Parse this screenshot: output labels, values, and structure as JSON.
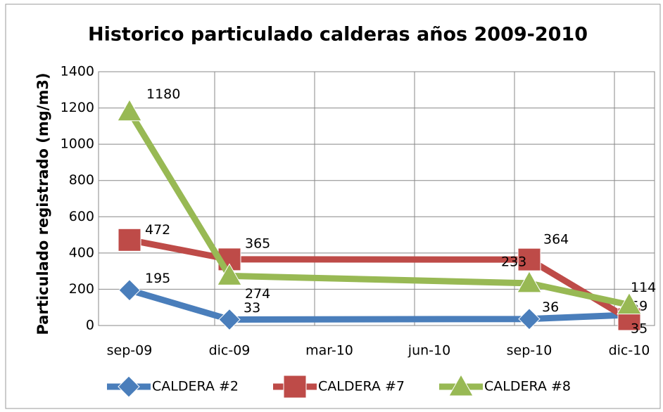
{
  "chart_data": {
    "type": "line",
    "title": "Historico particulado calderas años 2009-2010",
    "y_label": "Particulado registrado (mg/m3)",
    "x": [
      "sep-09",
      "dic-09",
      "sep-10",
      "dic-10"
    ],
    "xticks": [
      "sep-09",
      "dic-09",
      "mar-10",
      "jun-10",
      "sep-10",
      "dic-10"
    ],
    "ylim": [
      0,
      1400
    ],
    "yticks": [
      0,
      200,
      400,
      600,
      800,
      1000,
      1200,
      1400
    ],
    "grid": true,
    "legend": "bottom",
    "series": [
      {
        "name": "CALDERA #2",
        "color": "#4a7ebb",
        "marker": "diamond",
        "values": [
          195,
          33,
          36,
          59
        ]
      },
      {
        "name": "CALDERA #7",
        "color": "#be4b48",
        "marker": "square",
        "values": [
          472,
          365,
          364,
          35
        ]
      },
      {
        "name": "CALDERA #8",
        "color": "#98b954",
        "marker": "triangle",
        "values": [
          1180,
          274,
          233,
          114
        ]
      }
    ]
  }
}
